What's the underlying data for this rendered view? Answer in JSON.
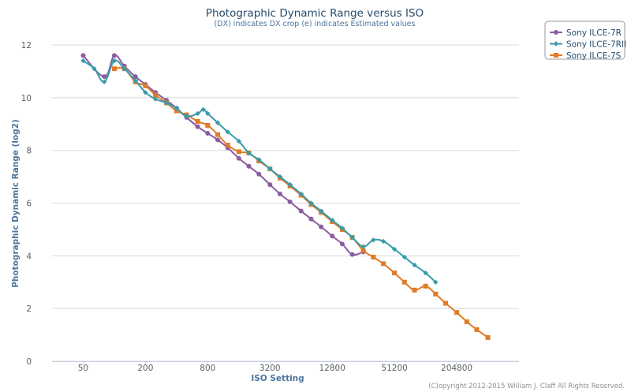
{
  "chart_data": {
    "type": "line",
    "title": "Photographic Dynamic Range versus ISO",
    "subtitle": "(DX) indicates DX crop (e) indicates Estimated values",
    "xlabel": "ISO Setting",
    "ylabel": "Photographic Dynamic Range (log2)",
    "x_scale": "log2",
    "xlim": [
      25,
      819200
    ],
    "ylim": [
      0,
      12.6
    ],
    "x_ticks": [
      {
        "value": 50,
        "label": "50"
      },
      {
        "value": 200,
        "label": "200"
      },
      {
        "value": 800,
        "label": "800"
      },
      {
        "value": 3200,
        "label": "3200"
      },
      {
        "value": 12800,
        "label": "12800"
      },
      {
        "value": 51200,
        "label": "51200"
      },
      {
        "value": 204800,
        "label": "204800"
      }
    ],
    "y_ticks": [
      {
        "value": 0,
        "label": "0"
      },
      {
        "value": 2,
        "label": "2"
      },
      {
        "value": 4,
        "label": "4"
      },
      {
        "value": 6,
        "label": "6"
      },
      {
        "value": 8,
        "label": "8"
      },
      {
        "value": 10,
        "label": "10"
      },
      {
        "value": 12,
        "label": "12"
      }
    ],
    "grid": true,
    "legend_position": "top-right",
    "series": [
      {
        "name": "Sony ILCE-7R",
        "color": "#8a5ca0",
        "marker": "circle",
        "points": [
          [
            50,
            11.6
          ],
          [
            80,
            10.8
          ],
          [
            100,
            11.6
          ],
          [
            125,
            11.2
          ],
          [
            160,
            10.8
          ],
          [
            200,
            10.5
          ],
          [
            250,
            10.2
          ],
          [
            320,
            9.9
          ],
          [
            400,
            9.6
          ],
          [
            500,
            9.25
          ],
          [
            640,
            8.9
          ],
          [
            800,
            8.65
          ],
          [
            1000,
            8.4
          ],
          [
            1250,
            8.1
          ],
          [
            1600,
            7.7
          ],
          [
            2000,
            7.4
          ],
          [
            2500,
            7.1
          ],
          [
            3200,
            6.7
          ],
          [
            4000,
            6.35
          ],
          [
            5000,
            6.05
          ],
          [
            6400,
            5.7
          ],
          [
            8000,
            5.4
          ],
          [
            10000,
            5.1
          ],
          [
            12800,
            4.75
          ],
          [
            16000,
            4.45
          ],
          [
            20000,
            4.05
          ],
          [
            25600,
            4.15
          ]
        ]
      },
      {
        "name": "Sony ILCE-7RII",
        "color": "#3a9bab",
        "marker": "diamond",
        "points": [
          [
            50,
            11.4
          ],
          [
            64,
            11.1
          ],
          [
            80,
            10.6
          ],
          [
            100,
            11.4
          ],
          [
            125,
            11.1
          ],
          [
            160,
            10.65
          ],
          [
            200,
            10.2
          ],
          [
            250,
            9.95
          ],
          [
            320,
            9.8
          ],
          [
            400,
            9.6
          ],
          [
            500,
            9.3
          ],
          [
            640,
            9.4
          ],
          [
            725,
            9.55
          ],
          [
            800,
            9.4
          ],
          [
            1000,
            9.05
          ],
          [
            1250,
            8.7
          ],
          [
            1600,
            8.35
          ],
          [
            2000,
            7.9
          ],
          [
            2500,
            7.65
          ],
          [
            3200,
            7.3
          ],
          [
            4000,
            7.0
          ],
          [
            5000,
            6.7
          ],
          [
            6400,
            6.35
          ],
          [
            8000,
            6.0
          ],
          [
            10000,
            5.7
          ],
          [
            12800,
            5.35
          ],
          [
            16000,
            5.05
          ],
          [
            20000,
            4.7
          ],
          [
            25600,
            4.35
          ],
          [
            32000,
            4.6
          ],
          [
            40000,
            4.55
          ],
          [
            51200,
            4.25
          ],
          [
            64000,
            3.95
          ],
          [
            80000,
            3.65
          ],
          [
            102400,
            3.35
          ],
          [
            128000,
            3.0
          ]
        ]
      },
      {
        "name": "Sony ILCE-7S",
        "color": "#e07b27",
        "marker": "square",
        "points": [
          [
            100,
            11.1
          ],
          [
            125,
            11.1
          ],
          [
            160,
            10.6
          ],
          [
            200,
            10.45
          ],
          [
            250,
            10.1
          ],
          [
            320,
            9.8
          ],
          [
            400,
            9.5
          ],
          [
            500,
            9.35
          ],
          [
            640,
            9.1
          ],
          [
            800,
            8.95
          ],
          [
            1000,
            8.6
          ],
          [
            1250,
            8.2
          ],
          [
            1600,
            7.95
          ],
          [
            2000,
            7.9
          ],
          [
            2500,
            7.6
          ],
          [
            3200,
            7.3
          ],
          [
            4000,
            6.95
          ],
          [
            5000,
            6.65
          ],
          [
            6400,
            6.3
          ],
          [
            8000,
            5.95
          ],
          [
            10000,
            5.65
          ],
          [
            12800,
            5.3
          ],
          [
            16000,
            5.0
          ],
          [
            20000,
            4.7
          ],
          [
            25600,
            4.2
          ],
          [
            32000,
            3.95
          ],
          [
            40000,
            3.7
          ],
          [
            51200,
            3.35
          ],
          [
            64000,
            3.0
          ],
          [
            80000,
            2.7
          ],
          [
            102400,
            2.85
          ],
          [
            128000,
            2.55
          ],
          [
            160000,
            2.2
          ],
          [
            204800,
            1.85
          ],
          [
            256000,
            1.5
          ],
          [
            320000,
            1.2
          ],
          [
            409600,
            0.9
          ]
        ]
      }
    ]
  },
  "credit": "(C)opyright 2012-2015 William J. Claff All Rights Reserved."
}
